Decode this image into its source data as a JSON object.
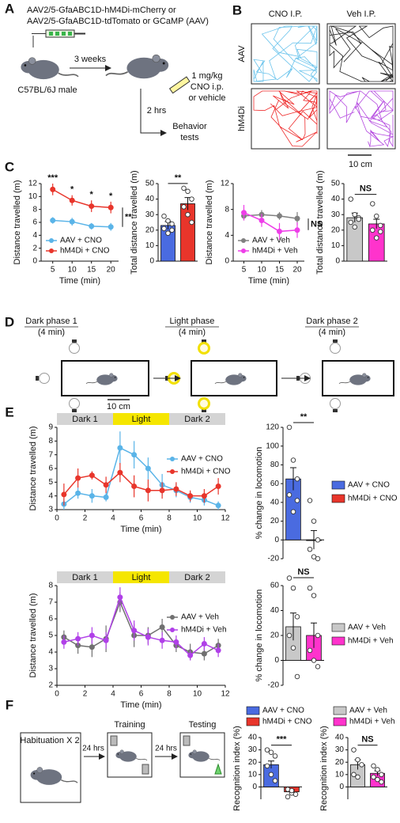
{
  "panel_labels": [
    "A",
    "B",
    "C",
    "D",
    "E",
    "F"
  ],
  "panel_a": {
    "virus_lines": [
      "AAV2/5-GfaABC1D-hM4Di-mCherry or",
      "AAV2/5-GfaABC1D-tdTomato or GCaMP (AAV)"
    ],
    "delay": "3 weeks",
    "mouse": "C57BL/6J male",
    "dose_lines": [
      "1 mg/kg",
      "CNO i.p.",
      "or vehicle"
    ],
    "wait": "2 hrs",
    "behavior_lines": [
      "Behavior",
      "tests"
    ]
  },
  "panel_b": {
    "columns": [
      "CNO I.P.",
      "Veh I.P."
    ],
    "rows": [
      "AAV",
      "hM4Di"
    ],
    "scale": "10 cm"
  },
  "panel_d": {
    "phases": [
      {
        "title": "Dark phase 1",
        "duration": "(4 min)"
      },
      {
        "title": "Light phase",
        "duration": "(4 min)"
      },
      {
        "title": "Dark phase 2",
        "duration": "(4 min)"
      }
    ],
    "scale": "10 cm"
  },
  "panel_f": {
    "steps": [
      "Habituation X 2",
      "Training",
      "Testing"
    ],
    "intervals": [
      "24 hrs",
      "24 hrs"
    ]
  },
  "chart_data": [
    {
      "type": "line",
      "xlabel": "Time (min)",
      "ylabel": "Distance travelled (m)",
      "x": [
        5,
        10,
        15,
        20
      ],
      "xlim": [
        2,
        22
      ],
      "xticks": [
        5,
        10,
        15,
        20
      ],
      "ylim": [
        0,
        12
      ],
      "yticks": [
        0,
        2,
        4,
        6,
        8,
        10,
        12
      ],
      "legend": "lower left",
      "series": [
        {
          "name": "AAV + CNO",
          "color": "#5ab4e8",
          "values": [
            6.3,
            6.1,
            5.4,
            5.3
          ],
          "errors": [
            0.5,
            0.6,
            0.5,
            0.6
          ]
        },
        {
          "name": "hM4Di + CNO",
          "color": "#e8352b",
          "values": [
            11.1,
            9.4,
            8.5,
            8.3
          ],
          "errors": [
            0.9,
            0.8,
            0.9,
            0.9
          ]
        }
      ],
      "significance": [
        "***",
        "*",
        "*",
        "*"
      ],
      "overall_significance": "**"
    },
    {
      "type": "bar",
      "ylabel": "Total distance travelled (m)",
      "ylim": [
        0,
        50
      ],
      "yticks": [
        0,
        10,
        20,
        30,
        40,
        50
      ],
      "bars": [
        {
          "color": "#4a6be0",
          "value": 23,
          "error": 2.5,
          "points": [
            29,
            26,
            24,
            21,
            18,
            20
          ]
        },
        {
          "color": "#e8352b",
          "value": 37,
          "error": 4,
          "points": [
            47,
            45,
            40,
            35,
            30,
            25
          ]
        }
      ],
      "significance": "**"
    },
    {
      "type": "line",
      "xlabel": "Time (min)",
      "ylabel": "Distance travelled (m)",
      "x": [
        5,
        10,
        15,
        20
      ],
      "xlim": [
        2,
        22
      ],
      "xticks": [
        5,
        10,
        15,
        20
      ],
      "ylim": [
        0,
        12
      ],
      "yticks": [
        0,
        4,
        8,
        12
      ],
      "legend": "lower left",
      "series": [
        {
          "name": "AAV + Veh",
          "color": "#808080",
          "values": [
            7.0,
            7.2,
            7.0,
            6.6
          ],
          "errors": [
            0.7,
            0.7,
            0.6,
            1.0
          ]
        },
        {
          "name": "hM4Di + Veh",
          "color": "#ee3ee8",
          "values": [
            7.5,
            6.3,
            4.6,
            4.8
          ],
          "errors": [
            1.2,
            1.0,
            1.3,
            1.2
          ]
        }
      ],
      "overall_significance": "NS"
    },
    {
      "type": "bar",
      "ylabel": "Total distance travelled (m)",
      "ylim": [
        0,
        50
      ],
      "yticks": [
        0,
        10,
        20,
        30,
        40,
        50
      ],
      "bars": [
        {
          "color": "#c8c8c8",
          "value": 28,
          "error": 3,
          "points": [
            40,
            30,
            28,
            25,
            22,
            27
          ]
        },
        {
          "color": "#ff33cc",
          "value": 24,
          "error": 3,
          "points": [
            37,
            29,
            23,
            20,
            15,
            19
          ]
        }
      ],
      "significance": "NS"
    },
    {
      "type": "line",
      "xlabel": "Time (min)",
      "ylabel": "Distance travelled (m)",
      "x": [
        0.5,
        1.5,
        2.5,
        3.5,
        4.5,
        5.5,
        6.5,
        7.5,
        8.5,
        9.5,
        10.5,
        11.5
      ],
      "xlim": [
        0,
        12
      ],
      "xticks": [
        0,
        2,
        4,
        6,
        8,
        10,
        12
      ],
      "ylim": [
        3,
        9
      ],
      "yticks": [
        3,
        4,
        5,
        6,
        7,
        8,
        9
      ],
      "legend": "upper right",
      "phases": [
        {
          "label": "Dark 1",
          "start": 0,
          "end": 4,
          "color": "#d4d4d4"
        },
        {
          "label": "Light",
          "start": 4,
          "end": 8,
          "color": "#f5e600"
        },
        {
          "label": "Dark 2",
          "start": 8,
          "end": 12,
          "color": "#d4d4d4"
        }
      ],
      "series": [
        {
          "name": "AAV + CNO",
          "color": "#5ab4e8",
          "values": [
            3.4,
            4.2,
            4.0,
            3.9,
            7.5,
            7.0,
            6.0,
            4.8,
            4.4,
            3.9,
            3.7,
            3.3
          ],
          "errors": [
            0.4,
            0.4,
            0.5,
            0.3,
            1.2,
            1.0,
            0.8,
            0.8,
            0.5,
            0.4,
            0.4,
            0.3
          ]
        },
        {
          "name": "hM4Di + CNO",
          "color": "#e8352b",
          "values": [
            4.1,
            5.3,
            5.5,
            4.8,
            5.7,
            4.7,
            4.4,
            4.4,
            4.5,
            4.0,
            4.0,
            4.7
          ],
          "errors": [
            0.8,
            0.7,
            0.3,
            0.6,
            0.7,
            0.8,
            0.8,
            0.6,
            0.5,
            0.4,
            0.5,
            0.6
          ]
        }
      ]
    },
    {
      "type": "bar",
      "ylabel": "% change in locomotion",
      "ylim": [
        -20,
        120
      ],
      "yticks": [
        -20,
        0,
        20,
        40,
        60,
        80,
        100,
        120
      ],
      "legend": "right",
      "bars": [
        {
          "name": "AAV + CNO",
          "color": "#4a6be0",
          "value": 65,
          "error": 12,
          "points": [
            120,
            85,
            65,
            48,
            30,
            42
          ]
        },
        {
          "name": "hM4Di + CNO",
          "color": "#e8352b",
          "value": 0,
          "error": 10,
          "points": [
            42,
            20,
            0,
            -10,
            -18,
            -20
          ]
        }
      ],
      "significance": "**"
    },
    {
      "type": "line",
      "xlabel": "Time (min)",
      "ylabel": "Distance travelled (m)",
      "x": [
        0.5,
        1.5,
        2.5,
        3.5,
        4.5,
        5.5,
        6.5,
        7.5,
        8.5,
        9.5,
        10.5,
        11.5
      ],
      "xlim": [
        0,
        12
      ],
      "xticks": [
        0,
        2,
        4,
        6,
        8,
        10,
        12
      ],
      "ylim": [
        2,
        8
      ],
      "yticks": [
        2,
        3,
        4,
        5,
        6,
        7,
        8
      ],
      "legend": "upper right",
      "phases": [
        {
          "label": "Dark 1",
          "start": 0,
          "end": 4,
          "color": "#d4d4d4"
        },
        {
          "label": "Light",
          "start": 4,
          "end": 8,
          "color": "#f5e600"
        },
        {
          "label": "Dark 2",
          "start": 8,
          "end": 12,
          "color": "#d4d4d4"
        }
      ],
      "series": [
        {
          "name": "AAV + Veh",
          "color": "#707070",
          "values": [
            4.9,
            4.4,
            4.3,
            4.8,
            7.0,
            5.0,
            5.0,
            5.5,
            4.4,
            4.0,
            3.9,
            4.4
          ],
          "errors": [
            0.4,
            0.5,
            0.6,
            0.8,
            0.6,
            0.7,
            0.5,
            0.5,
            0.4,
            0.5,
            0.4,
            0.4
          ]
        },
        {
          "name": "hM4Di + Veh",
          "color": "#b040e8",
          "values": [
            4.6,
            4.8,
            5.0,
            4.7,
            7.3,
            5.3,
            4.9,
            4.7,
            4.6,
            3.8,
            4.5,
            4.1
          ],
          "errors": [
            0.4,
            0.4,
            0.5,
            0.5,
            0.6,
            0.6,
            0.5,
            0.5,
            0.4,
            0.3,
            0.4,
            0.4
          ]
        }
      ]
    },
    {
      "type": "bar",
      "ylabel": "% change in locomotion",
      "ylim": [
        -20,
        60
      ],
      "yticks": [
        -20,
        0,
        20,
        40,
        60
      ],
      "legend": "right",
      "bars": [
        {
          "name": "AAV + Veh",
          "color": "#c8c8c8",
          "value": 27,
          "error": 11,
          "points": [
            66,
            58,
            35,
            20,
            10,
            -13
          ]
        },
        {
          "name": "hM4Di + Veh",
          "color": "#ff33cc",
          "value": 20,
          "error": 10,
          "points": [
            58,
            52,
            20,
            8,
            0,
            -5
          ]
        }
      ],
      "significance": "NS"
    },
    {
      "type": "bar",
      "ylabel": "Recognition index (%)",
      "ylim": [
        -10,
        40
      ],
      "yticks": [
        0,
        10,
        20,
        30,
        40
      ],
      "legend": "top",
      "bars": [
        {
          "name": "AAV + CNO",
          "color": "#4a6be0",
          "value": 18,
          "error": 3,
          "points": [
            30,
            28,
            25,
            17,
            10,
            5
          ]
        },
        {
          "name": "hM4Di + CNO",
          "color": "#e8352b",
          "value": -4,
          "error": 1.5,
          "points": [
            -2,
            -5,
            -6,
            -8,
            -3
          ]
        }
      ],
      "significance": "***"
    },
    {
      "type": "bar",
      "ylabel": "Recognition index (%)",
      "ylim": [
        -10,
        40
      ],
      "yticks": [
        0,
        10,
        20,
        30,
        40
      ],
      "legend": "top",
      "bars": [
        {
          "name": "AAV + Veh",
          "color": "#c8c8c8",
          "value": 18,
          "error": 4,
          "points": [
            30,
            22,
            18,
            10,
            8
          ]
        },
        {
          "name": "hM4Di + Veh",
          "color": "#ff33cc",
          "value": 11,
          "error": 2,
          "points": [
            17,
            14,
            10,
            8,
            6,
            4
          ]
        }
      ],
      "significance": "NS"
    }
  ]
}
